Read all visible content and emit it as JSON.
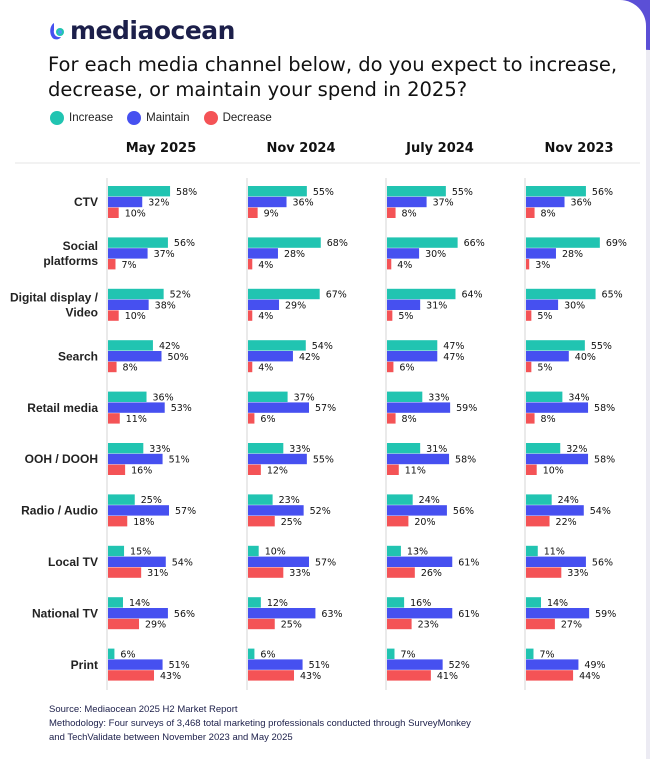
{
  "brand": {
    "name": "mediaocean",
    "colors": {
      "primary": "#1c1f4a",
      "accent": "#4a52ee"
    }
  },
  "title": "For each media channel below, do you expect to increase, decrease, or maintain your spend in 2025?",
  "chart_data": {
    "type": "bar",
    "orientation": "horizontal",
    "grouped": true,
    "title": "For each media channel below, do you expect to increase, decrease, or maintain your spend in 2025?",
    "unit": "%",
    "legend": {
      "placement": "top-left",
      "entries": [
        "Increase",
        "Maintain",
        "Decrease"
      ]
    },
    "colors": {
      "Increase": "#21c4b1",
      "Maintain": "#4650f0",
      "Decrease": "#f45356"
    },
    "categories": [
      "CTV",
      "Social platforms",
      "Digital display / Video",
      "Search",
      "Retail media",
      "OOH / DOOH",
      "Radio / Audio",
      "Local TV",
      "National TV",
      "Print"
    ],
    "panels": [
      {
        "period": "May 2025",
        "series": [
          {
            "name": "Increase",
            "values": [
              58,
              56,
              52,
              42,
              36,
              33,
              25,
              15,
              14,
              6
            ]
          },
          {
            "name": "Maintain",
            "values": [
              32,
              37,
              38,
              50,
              53,
              51,
              57,
              54,
              56,
              51
            ]
          },
          {
            "name": "Decrease",
            "values": [
              10,
              7,
              10,
              8,
              11,
              16,
              18,
              31,
              29,
              43
            ]
          }
        ]
      },
      {
        "period": "Nov 2024",
        "series": [
          {
            "name": "Increase",
            "values": [
              55,
              68,
              67,
              54,
              37,
              33,
              23,
              10,
              12,
              6
            ]
          },
          {
            "name": "Maintain",
            "values": [
              36,
              28,
              29,
              42,
              57,
              55,
              52,
              57,
              63,
              51
            ]
          },
          {
            "name": "Decrease",
            "values": [
              9,
              4,
              4,
              4,
              6,
              12,
              25,
              33,
              25,
              43
            ]
          }
        ]
      },
      {
        "period": "July 2024",
        "series": [
          {
            "name": "Increase",
            "values": [
              55,
              66,
              64,
              47,
              33,
              31,
              24,
              13,
              16,
              7
            ]
          },
          {
            "name": "Maintain",
            "values": [
              37,
              30,
              31,
              47,
              59,
              58,
              56,
              61,
              61,
              52
            ]
          },
          {
            "name": "Decrease",
            "values": [
              8,
              4,
              5,
              6,
              8,
              11,
              20,
              26,
              23,
              41
            ]
          }
        ]
      },
      {
        "period": "Nov 2023",
        "series": [
          {
            "name": "Increase",
            "values": [
              56,
              69,
              65,
              55,
              34,
              32,
              24,
              11,
              14,
              7
            ]
          },
          {
            "name": "Maintain",
            "values": [
              36,
              28,
              30,
              40,
              58,
              58,
              54,
              56,
              59,
              49
            ]
          },
          {
            "name": "Decrease",
            "values": [
              8,
              3,
              5,
              5,
              8,
              10,
              22,
              33,
              27,
              44
            ]
          }
        ]
      }
    ],
    "grid": false
  },
  "footer": {
    "source": "Source: Mediaocean 2025 H2 Market Report",
    "methodology_1": "Methodology: Four surveys of 3,468 total marketing professionals conducted through SurveyMonkey",
    "methodology_2": "and TechValidate between November 2023 and May 2025"
  }
}
